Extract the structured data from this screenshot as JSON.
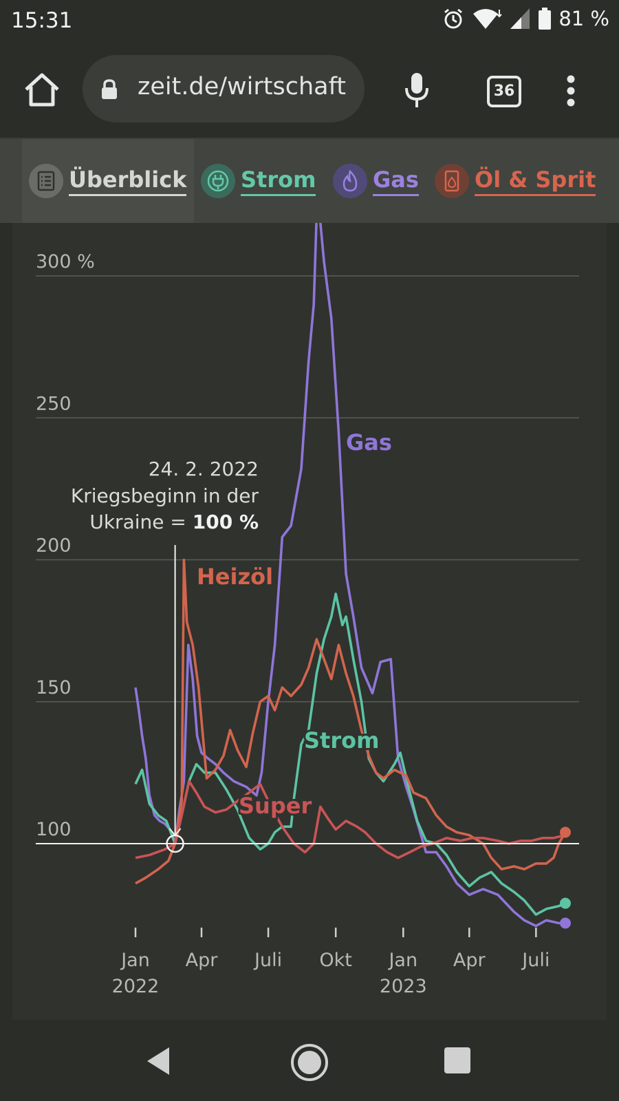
{
  "status_bar": {
    "time": "15:31",
    "battery": "81 %",
    "icons": [
      "alarm-icon",
      "wifi-icon",
      "signal-icon",
      "battery-icon"
    ]
  },
  "browser": {
    "url": "zeit.de/wirtschaft",
    "tab_count": "36"
  },
  "category_nav": {
    "items": [
      {
        "label": "Überblick",
        "color": "#d7d7d2",
        "icon": "list-icon",
        "active": true
      },
      {
        "label": "Strom",
        "color": "#63c9a8",
        "icon": "plug-icon",
        "active": false
      },
      {
        "label": "Gas",
        "color": "#9a82e0",
        "icon": "flame-icon",
        "active": false
      },
      {
        "label": "Öl & Sprit",
        "color": "#d8654e",
        "icon": "canister-icon",
        "active": false
      }
    ]
  },
  "chart_data": {
    "type": "line",
    "y_tick_labels": [
      "300 %",
      "250",
      "200",
      "150",
      "100"
    ],
    "y_ticks": [
      300,
      250,
      200,
      150,
      100
    ],
    "ylim": [
      70,
      320
    ],
    "x_tick_labels": [
      {
        "month": "Jan",
        "year": "2022"
      },
      {
        "month": "Apr",
        "year": ""
      },
      {
        "month": "Juli",
        "year": ""
      },
      {
        "month": "Okt",
        "year": ""
      },
      {
        "month": "Jan",
        "year": "2023"
      },
      {
        "month": "Apr",
        "year": ""
      },
      {
        "month": "Juli",
        "year": ""
      }
    ],
    "x_ticks": [
      "2022-01",
      "2022-04",
      "2022-07",
      "2022-10",
      "2023-01",
      "2023-04",
      "2023-07"
    ],
    "annotation": {
      "date": "24. 2. 2022",
      "line1": "Kriegsbeginn in der",
      "line2_prefix": "Ukraine = ",
      "line2_bold": "100 %",
      "x": "2022-02-24",
      "y": 100
    },
    "series": [
      {
        "name": "Gas",
        "color": "#8f76d8",
        "points": [
          [
            "2022-01-01",
            155
          ],
          [
            "2022-01-05",
            148
          ],
          [
            "2022-01-10",
            138
          ],
          [
            "2022-01-15",
            130
          ],
          [
            "2022-01-20",
            117
          ],
          [
            "2022-01-27",
            110
          ],
          [
            "2022-02-03",
            108
          ],
          [
            "2022-02-10",
            107
          ],
          [
            "2022-02-17",
            105
          ],
          [
            "2022-02-24",
            100
          ],
          [
            "2022-03-02",
            112
          ],
          [
            "2022-03-08",
            122
          ],
          [
            "2022-03-14",
            170
          ],
          [
            "2022-03-20",
            158
          ],
          [
            "2022-03-26",
            138
          ],
          [
            "2022-04-01",
            132
          ],
          [
            "2022-04-10",
            130
          ],
          [
            "2022-04-20",
            128
          ],
          [
            "2022-05-01",
            125
          ],
          [
            "2022-05-15",
            122
          ],
          [
            "2022-06-01",
            120
          ],
          [
            "2022-06-15",
            117
          ],
          [
            "2022-06-22",
            125
          ],
          [
            "2022-07-01",
            150
          ],
          [
            "2022-07-10",
            170
          ],
          [
            "2022-07-20",
            208
          ],
          [
            "2022-08-01",
            212
          ],
          [
            "2022-08-15",
            232
          ],
          [
            "2022-08-25",
            270
          ],
          [
            "2022-09-01",
            290
          ],
          [
            "2022-09-06",
            330
          ],
          [
            "2022-09-15",
            305
          ],
          [
            "2022-09-25",
            285
          ],
          [
            "2022-10-05",
            245
          ],
          [
            "2022-10-15",
            195
          ],
          [
            "2022-10-25",
            180
          ],
          [
            "2022-11-05",
            162
          ],
          [
            "2022-11-20",
            153
          ],
          [
            "2022-12-01",
            164
          ],
          [
            "2022-12-15",
            165
          ],
          [
            "2022-12-25",
            130
          ],
          [
            "2023-01-05",
            120
          ],
          [
            "2023-01-15",
            112
          ],
          [
            "2023-02-01",
            97
          ],
          [
            "2023-02-15",
            97
          ],
          [
            "2023-03-01",
            92
          ],
          [
            "2023-03-15",
            86
          ],
          [
            "2023-04-01",
            82
          ],
          [
            "2023-04-20",
            84
          ],
          [
            "2023-05-10",
            82
          ],
          [
            "2023-06-01",
            76
          ],
          [
            "2023-06-15",
            73
          ],
          [
            "2023-07-01",
            71
          ],
          [
            "2023-07-15",
            73
          ],
          [
            "2023-08-01",
            72
          ],
          [
            "2023-08-10",
            72
          ]
        ]
      },
      {
        "name": "Strom",
        "color": "#5cc4a3",
        "points": [
          [
            "2022-01-01",
            121
          ],
          [
            "2022-01-10",
            126
          ],
          [
            "2022-01-20",
            114
          ],
          [
            "2022-02-01",
            110
          ],
          [
            "2022-02-12",
            108
          ],
          [
            "2022-02-24",
            100
          ],
          [
            "2022-03-05",
            110
          ],
          [
            "2022-03-15",
            122
          ],
          [
            "2022-03-25",
            128
          ],
          [
            "2022-04-05",
            125
          ],
          [
            "2022-04-20",
            125
          ],
          [
            "2022-05-05",
            119
          ],
          [
            "2022-05-20",
            112
          ],
          [
            "2022-06-05",
            102
          ],
          [
            "2022-06-20",
            98
          ],
          [
            "2022-07-01",
            100
          ],
          [
            "2022-07-10",
            104
          ],
          [
            "2022-07-20",
            106
          ],
          [
            "2022-08-01",
            106
          ],
          [
            "2022-08-05",
            116
          ],
          [
            "2022-08-15",
            135
          ],
          [
            "2022-08-25",
            140
          ],
          [
            "2022-09-05",
            160
          ],
          [
            "2022-09-15",
            172
          ],
          [
            "2022-09-25",
            180
          ],
          [
            "2022-10-01",
            188
          ],
          [
            "2022-10-10",
            177
          ],
          [
            "2022-10-15",
            180
          ],
          [
            "2022-10-25",
            165
          ],
          [
            "2022-11-05",
            150
          ],
          [
            "2022-11-15",
            130
          ],
          [
            "2022-11-25",
            125
          ],
          [
            "2022-12-05",
            122
          ],
          [
            "2022-12-20",
            128
          ],
          [
            "2022-12-28",
            132
          ],
          [
            "2023-01-10",
            118
          ],
          [
            "2023-01-20",
            108
          ],
          [
            "2023-02-01",
            101
          ],
          [
            "2023-02-15",
            100
          ],
          [
            "2023-03-01",
            96
          ],
          [
            "2023-03-15",
            90
          ],
          [
            "2023-04-01",
            85
          ],
          [
            "2023-04-15",
            88
          ],
          [
            "2023-05-01",
            90
          ],
          [
            "2023-05-15",
            86
          ],
          [
            "2023-06-01",
            83
          ],
          [
            "2023-06-15",
            80
          ],
          [
            "2023-07-01",
            75
          ],
          [
            "2023-07-15",
            77
          ],
          [
            "2023-08-01",
            78
          ],
          [
            "2023-08-10",
            79
          ]
        ]
      },
      {
        "name": "Heizöl",
        "color": "#d2654d",
        "points": [
          [
            "2022-01-01",
            86
          ],
          [
            "2022-01-15",
            88
          ],
          [
            "2022-02-01",
            91
          ],
          [
            "2022-02-15",
            94
          ],
          [
            "2022-02-24",
            100
          ],
          [
            "2022-03-05",
            115
          ],
          [
            "2022-03-08",
            200
          ],
          [
            "2022-03-12",
            178
          ],
          [
            "2022-03-20",
            170
          ],
          [
            "2022-03-28",
            155
          ],
          [
            "2022-04-08",
            123
          ],
          [
            "2022-04-20",
            126
          ],
          [
            "2022-05-01",
            131
          ],
          [
            "2022-05-10",
            140
          ],
          [
            "2022-05-20",
            133
          ],
          [
            "2022-06-01",
            127
          ],
          [
            "2022-06-10",
            139
          ],
          [
            "2022-06-20",
            150
          ],
          [
            "2022-07-01",
            152
          ],
          [
            "2022-07-10",
            147
          ],
          [
            "2022-07-20",
            155
          ],
          [
            "2022-08-01",
            152
          ],
          [
            "2022-08-15",
            156
          ],
          [
            "2022-08-25",
            162
          ],
          [
            "2022-09-05",
            172
          ],
          [
            "2022-09-15",
            165
          ],
          [
            "2022-09-25",
            158
          ],
          [
            "2022-10-05",
            170
          ],
          [
            "2022-10-15",
            160
          ],
          [
            "2022-10-25",
            152
          ],
          [
            "2022-11-05",
            140
          ],
          [
            "2022-11-15",
            131
          ],
          [
            "2022-11-25",
            125
          ],
          [
            "2022-12-05",
            123
          ],
          [
            "2022-12-20",
            126
          ],
          [
            "2023-01-05",
            124
          ],
          [
            "2023-01-15",
            118
          ],
          [
            "2023-02-01",
            116
          ],
          [
            "2023-02-15",
            110
          ],
          [
            "2023-03-01",
            106
          ],
          [
            "2023-03-15",
            104
          ],
          [
            "2023-04-01",
            103
          ],
          [
            "2023-04-20",
            100
          ],
          [
            "2023-05-01",
            95
          ],
          [
            "2023-05-15",
            91
          ],
          [
            "2023-06-01",
            92
          ],
          [
            "2023-06-15",
            91
          ],
          [
            "2023-07-01",
            93
          ],
          [
            "2023-07-15",
            93
          ],
          [
            "2023-07-25",
            95
          ],
          [
            "2023-08-01",
            100
          ],
          [
            "2023-08-10",
            104
          ]
        ]
      },
      {
        "name": "Super",
        "color": "#c95555",
        "points": [
          [
            "2022-01-01",
            95
          ],
          [
            "2022-01-20",
            96
          ],
          [
            "2022-02-10",
            98
          ],
          [
            "2022-02-24",
            100
          ],
          [
            "2022-03-05",
            110
          ],
          [
            "2022-03-15",
            122
          ],
          [
            "2022-03-25",
            118
          ],
          [
            "2022-04-05",
            113
          ],
          [
            "2022-04-20",
            111
          ],
          [
            "2022-05-05",
            112
          ],
          [
            "2022-05-20",
            115
          ],
          [
            "2022-06-05",
            118
          ],
          [
            "2022-06-20",
            121
          ],
          [
            "2022-07-05",
            113
          ],
          [
            "2022-07-20",
            106
          ],
          [
            "2022-08-05",
            100
          ],
          [
            "2022-08-20",
            97
          ],
          [
            "2022-09-01",
            100
          ],
          [
            "2022-09-10",
            113
          ],
          [
            "2022-09-20",
            109
          ],
          [
            "2022-10-01",
            105
          ],
          [
            "2022-10-15",
            108
          ],
          [
            "2022-10-30",
            106
          ],
          [
            "2022-11-10",
            104
          ],
          [
            "2022-11-25",
            100
          ],
          [
            "2022-12-10",
            97
          ],
          [
            "2022-12-25",
            95
          ],
          [
            "2023-01-10",
            97
          ],
          [
            "2023-01-25",
            99
          ],
          [
            "2023-02-10",
            100
          ],
          [
            "2023-03-01",
            102
          ],
          [
            "2023-03-20",
            101
          ],
          [
            "2023-04-05",
            102
          ],
          [
            "2023-04-20",
            102
          ],
          [
            "2023-05-10",
            101
          ],
          [
            "2023-05-25",
            100
          ],
          [
            "2023-06-10",
            101
          ],
          [
            "2023-06-25",
            101
          ],
          [
            "2023-07-10",
            102
          ],
          [
            "2023-07-25",
            102
          ],
          [
            "2023-08-10",
            103
          ]
        ]
      }
    ],
    "series_labels": [
      {
        "series": "Gas",
        "text": "Gas"
      },
      {
        "series": "Heizöl",
        "text": "Heizöl"
      },
      {
        "series": "Strom",
        "text": "Strom"
      },
      {
        "series": "Super",
        "text": "Super"
      }
    ]
  }
}
